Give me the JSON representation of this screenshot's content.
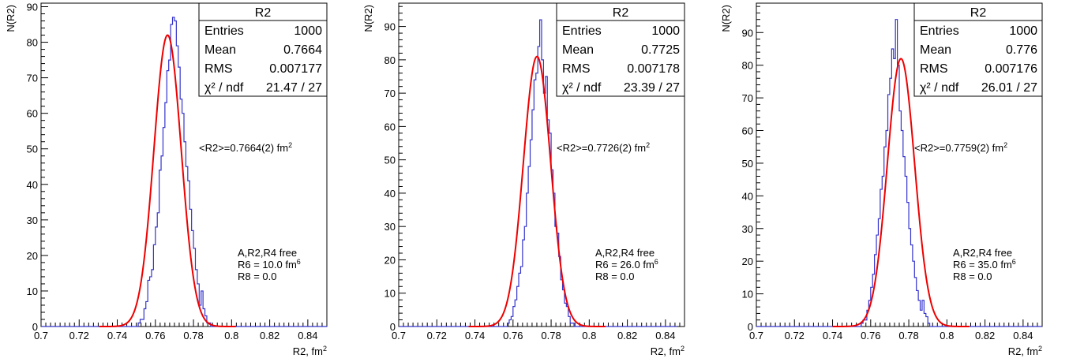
{
  "chart_data": [
    {
      "type": "histogram",
      "title": "",
      "xlabel": "R2, fm",
      "xlabel_sup": "2",
      "ylabel": "N(R2)",
      "xlim": [
        0.7,
        0.85
      ],
      "ylim": [
        0,
        91
      ],
      "xticks": [
        "0.7",
        "0.72",
        "0.74",
        "0.76",
        "0.78",
        "0.8",
        "0.82",
        "0.84"
      ],
      "yticks": [
        "0",
        "10",
        "20",
        "30",
        "40",
        "50",
        "60",
        "70",
        "80",
        "90"
      ],
      "stats": {
        "title": "R2",
        "rows": [
          {
            "label": "Entries",
            "value": "1000"
          },
          {
            "label": "Mean",
            "value": "0.7664"
          },
          {
            "label": "RMS",
            "value": "0.007177"
          },
          {
            "label": "χ² / ndf",
            "value": "21.47 / 27"
          }
        ]
      },
      "annotation": {
        "text": "<R2>=0.7664(2) fm",
        "sup": "2"
      },
      "params": [
        {
          "text": "A,R2,R4 free",
          "sup": ""
        },
        {
          "text": "R6 = 10.0 fm",
          "sup": "6"
        },
        {
          "text": "R8 = 0.0",
          "sup": ""
        }
      ],
      "fit": {
        "mean": 0.7664,
        "sigma": 0.00718,
        "amplitude": 82
      },
      "series": [
        {
          "name": "histogram",
          "color": "#3333cc",
          "x_start": 0.7,
          "bin_width": 0.001,
          "values": [
            0,
            0,
            0,
            0,
            0,
            0,
            0,
            0,
            0,
            0,
            0,
            0,
            0,
            0,
            0,
            0,
            0,
            0,
            0,
            0,
            0,
            0,
            0,
            0,
            0,
            0,
            0,
            0,
            0,
            0,
            0,
            0,
            0,
            0,
            0,
            0,
            0,
            0,
            0,
            0,
            0,
            0,
            0,
            0,
            0,
            0,
            0,
            0,
            0,
            0,
            0,
            1,
            2,
            2,
            5,
            7,
            13,
            14,
            16,
            23,
            28,
            32,
            44,
            48,
            56,
            63,
            72,
            75,
            85,
            87,
            86,
            79,
            73,
            64,
            60,
            52,
            45,
            41,
            33,
            27,
            22,
            16,
            12,
            6,
            10,
            5,
            3,
            1,
            1,
            0,
            0,
            0,
            0,
            0,
            0,
            0,
            0,
            0,
            0,
            0,
            0,
            0,
            0,
            0,
            0,
            0,
            0,
            0,
            0,
            0,
            0,
            0,
            0,
            0,
            0,
            0,
            0,
            0,
            0,
            0,
            0,
            0,
            0,
            0,
            0,
            0,
            0,
            0,
            0,
            0,
            0,
            0,
            0,
            0,
            0,
            0,
            0,
            0,
            0,
            0,
            0,
            0,
            0,
            0,
            0,
            0,
            0,
            0,
            0,
            0
          ]
        },
        {
          "name": "gaussian fit",
          "color": "#ee0000"
        }
      ]
    },
    {
      "type": "histogram",
      "title": "",
      "xlabel": "R2, fm",
      "xlabel_sup": "2",
      "ylabel": "N(R2)",
      "xlim": [
        0.7,
        0.85
      ],
      "ylim": [
        0,
        97
      ],
      "xticks": [
        "0.7",
        "0.72",
        "0.74",
        "0.76",
        "0.78",
        "0.8",
        "0.82",
        "0.84"
      ],
      "yticks": [
        "0",
        "10",
        "20",
        "30",
        "40",
        "50",
        "60",
        "70",
        "80",
        "90"
      ],
      "stats": {
        "title": "R2",
        "rows": [
          {
            "label": "Entries",
            "value": "1000"
          },
          {
            "label": "Mean",
            "value": "0.7725"
          },
          {
            "label": "RMS",
            "value": "0.007178"
          },
          {
            "label": "χ² / ndf",
            "value": "23.39 / 27"
          }
        ]
      },
      "annotation": {
        "text": "<R2>=0.7726(2) fm",
        "sup": "2"
      },
      "params": [
        {
          "text": "A,R2,R4 free",
          "sup": ""
        },
        {
          "text": "R6 = 26.0 fm",
          "sup": "6"
        },
        {
          "text": "R8 = 0.0",
          "sup": ""
        }
      ],
      "fit": {
        "mean": 0.7726,
        "sigma": 0.00718,
        "amplitude": 81
      },
      "series": [
        {
          "name": "histogram",
          "color": "#3333cc",
          "x_start": 0.7,
          "bin_width": 0.001,
          "values": [
            0,
            0,
            0,
            0,
            0,
            0,
            0,
            0,
            0,
            0,
            0,
            0,
            0,
            0,
            0,
            0,
            0,
            0,
            0,
            0,
            0,
            0,
            0,
            0,
            0,
            0,
            0,
            0,
            0,
            0,
            0,
            0,
            0,
            0,
            0,
            0,
            0,
            0,
            0,
            0,
            0,
            0,
            0,
            0,
            0,
            0,
            0,
            0,
            0,
            0,
            0,
            0,
            0,
            0,
            0,
            0,
            0,
            1,
            2,
            3,
            6,
            8,
            12,
            16,
            18,
            26,
            30,
            40,
            48,
            56,
            65,
            74,
            76,
            84,
            92,
            80,
            70,
            75,
            62,
            58,
            47,
            40,
            30,
            28,
            21,
            14,
            11,
            7,
            6,
            3,
            1,
            1,
            0,
            0,
            0,
            0,
            0,
            0,
            0,
            0,
            0,
            0,
            0,
            0,
            0,
            0,
            0,
            0,
            0,
            0,
            0,
            0,
            0,
            0,
            0,
            0,
            0,
            0,
            0,
            0,
            0,
            0,
            0,
            0,
            0,
            0,
            0,
            0,
            0,
            0,
            0,
            0,
            0,
            0,
            0,
            0,
            0,
            0,
            0,
            0,
            0,
            0,
            0,
            0,
            0,
            0
          ]
        },
        {
          "name": "gaussian fit",
          "color": "#ee0000"
        }
      ]
    },
    {
      "type": "histogram",
      "title": "",
      "xlabel": "R2, fm",
      "xlabel_sup": "2",
      "ylabel": "N(R2)",
      "xlim": [
        0.7,
        0.85
      ],
      "ylim": [
        0,
        99
      ],
      "xticks": [
        "0.7",
        "0.72",
        "0.74",
        "0.76",
        "0.78",
        "0.8",
        "0.82",
        "0.84"
      ],
      "yticks": [
        "0",
        "10",
        "20",
        "30",
        "40",
        "50",
        "60",
        "70",
        "80",
        "90"
      ],
      "stats": {
        "title": "R2",
        "rows": [
          {
            "label": "Entries",
            "value": "1000"
          },
          {
            "label": "Mean",
            "value": "0.776"
          },
          {
            "label": "RMS",
            "value": "0.007176"
          },
          {
            "label": "χ² / ndf",
            "value": "26.01 / 27"
          }
        ]
      },
      "annotation": {
        "text": "<R2>=0.7759(2) fm",
        "sup": "2"
      },
      "params": [
        {
          "text": "A,R2,R4 free",
          "sup": ""
        },
        {
          "text": "R6 = 35.0 fm",
          "sup": "6"
        },
        {
          "text": "R8 = 0.0",
          "sup": ""
        }
      ],
      "fit": {
        "mean": 0.7759,
        "sigma": 0.00718,
        "amplitude": 82
      },
      "series": [
        {
          "name": "histogram",
          "color": "#3333cc",
          "x_start": 0.7,
          "bin_width": 0.001,
          "values": [
            0,
            0,
            0,
            0,
            0,
            0,
            0,
            0,
            0,
            0,
            0,
            0,
            0,
            0,
            0,
            0,
            0,
            0,
            0,
            0,
            0,
            0,
            0,
            0,
            0,
            0,
            0,
            0,
            0,
            0,
            0,
            0,
            0,
            0,
            0,
            0,
            0,
            0,
            0,
            0,
            0,
            0,
            0,
            0,
            0,
            0,
            0,
            0,
            0,
            0,
            0,
            0,
            0,
            0,
            0,
            1,
            2,
            2,
            5,
            8,
            12,
            16,
            22,
            28,
            33,
            42,
            46,
            55,
            60,
            71,
            76,
            85,
            82,
            94,
            80,
            66,
            60,
            52,
            46,
            38,
            30,
            25,
            20,
            15,
            11,
            8,
            5,
            8,
            4,
            3,
            1,
            0,
            0,
            0,
            0,
            0,
            0,
            0,
            0,
            0,
            0,
            0,
            0,
            0,
            0,
            0,
            0,
            0,
            0,
            0,
            0,
            0,
            0,
            0,
            0,
            0,
            0,
            0,
            0,
            0,
            0,
            0,
            0,
            0,
            0,
            0,
            0,
            0,
            0,
            0,
            0,
            0,
            0,
            0,
            0,
            0,
            0,
            0,
            0,
            0,
            0,
            0,
            0,
            0,
            0,
            0,
            0,
            0,
            0,
            0
          ]
        },
        {
          "name": "gaussian fit",
          "color": "#ee0000"
        }
      ]
    }
  ]
}
